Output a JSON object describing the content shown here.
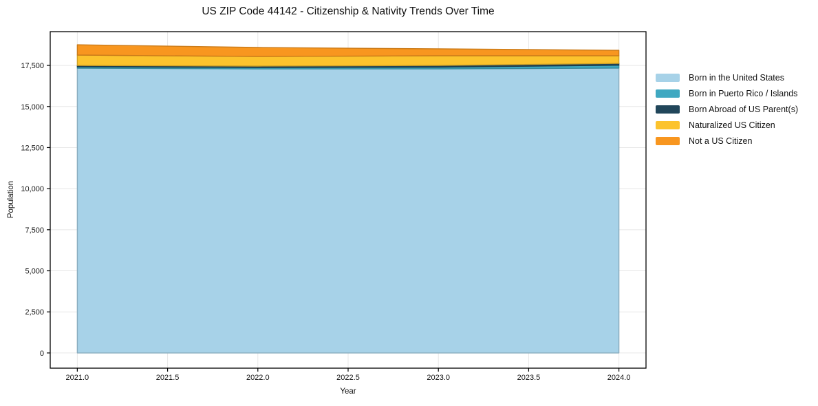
{
  "chart_data": {
    "type": "area",
    "stacked": true,
    "title": "US ZIP Code 44142 - Citizenship & Nativity Trends Over Time",
    "xlabel": "Year",
    "ylabel": "Population",
    "x": [
      2021,
      2022,
      2023,
      2024
    ],
    "series": [
      {
        "name": "Born in the United States",
        "color": "#a7d2e8",
        "values": [
          17335,
          17290,
          17290,
          17340
        ]
      },
      {
        "name": "Born in Puerto Rico / Islands",
        "color": "#3fa8c1",
        "values": [
          85,
          85,
          105,
          175
        ]
      },
      {
        "name": "Born Abroad of US Parent(s)",
        "color": "#21465a",
        "values": [
          80,
          85,
          105,
          110
        ]
      },
      {
        "name": "Naturalized US Citizen",
        "color": "#fcc32d",
        "values": [
          630,
          585,
          590,
          465
        ]
      },
      {
        "name": "Not a US Citizen",
        "color": "#f8961f",
        "values": [
          625,
          545,
          420,
          330
        ]
      }
    ],
    "x_ticks": {
      "values": [
        2021.0,
        2021.5,
        2022.0,
        2022.5,
        2023.0,
        2023.5,
        2024.0
      ],
      "labels": [
        "2021.0",
        "2021.5",
        "2022.0",
        "2022.5",
        "2023.0",
        "2023.5",
        "2024.0"
      ]
    },
    "y_ticks": {
      "values": [
        0,
        2500,
        5000,
        7500,
        10000,
        12500,
        15000,
        17500
      ],
      "labels": [
        "0",
        "2,500",
        "5,000",
        "7,500",
        "10,000",
        "12,500",
        "15,000",
        "17,500"
      ]
    },
    "x_range": [
      2020.85,
      2024.15
    ],
    "y_range": [
      -925,
      19555
    ],
    "grid": true,
    "grid_color": "#e7e7e7",
    "axis_color": "#000000",
    "background_color": "#ffffff",
    "legend_position": "right"
  }
}
